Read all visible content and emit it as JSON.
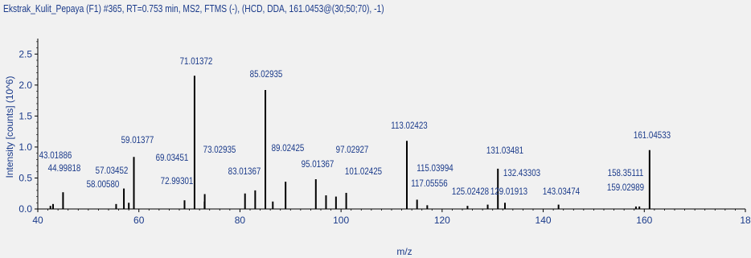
{
  "title": "Ekstrak_Kulit_Pepaya (F1) #365, RT=0.753 min, MS2, FTMS (-), (HCD, DDA, 161.0453@(30;50;70), -1)",
  "chart_data": {
    "type": "bar",
    "title": "Ekstrak_Kulit_Pepaya (F1) #365, RT=0.753 min, MS2, FTMS (-), (HCD, DDA, 161.0453@(30;50;70), -1)",
    "xlabel": "m/z",
    "ylabel": "Intensity [counts] (10^6)",
    "xlim": [
      40,
      180
    ],
    "ylim": [
      0,
      2.75
    ],
    "xticks": [
      "40",
      "60",
      "80",
      "100",
      "120",
      "140",
      "160",
      "18"
    ],
    "yticks": [
      "0.0",
      "0.5",
      "1.0",
      "1.5",
      "2.0",
      "2.5"
    ],
    "grid": false,
    "peaks": [
      {
        "mz": 42.5,
        "value": 0.05
      },
      {
        "mz": 43.01886,
        "value": 0.08
      },
      {
        "mz": 44.99818,
        "value": 0.27
      },
      {
        "mz": 55.5,
        "value": 0.08
      },
      {
        "mz": 57.03452,
        "value": 0.33
      },
      {
        "mz": 58.0058,
        "value": 0.1
      },
      {
        "mz": 59.01377,
        "value": 0.84
      },
      {
        "mz": 69.03451,
        "value": 0.14
      },
      {
        "mz": 71.01372,
        "value": 2.15
      },
      {
        "mz": 72.99301,
        "value": 0.12
      },
      {
        "mz": 73.02935,
        "value": 0.24
      },
      {
        "mz": 81.0,
        "value": 0.25
      },
      {
        "mz": 83.01367,
        "value": 0.3
      },
      {
        "mz": 85.02935,
        "value": 1.92
      },
      {
        "mz": 86.5,
        "value": 0.12
      },
      {
        "mz": 89.02425,
        "value": 0.44
      },
      {
        "mz": 95.01367,
        "value": 0.48
      },
      {
        "mz": 97.02927,
        "value": 0.22
      },
      {
        "mz": 99.0,
        "value": 0.2
      },
      {
        "mz": 101.02425,
        "value": 0.26
      },
      {
        "mz": 113.02423,
        "value": 1.1
      },
      {
        "mz": 115.03994,
        "value": 0.15
      },
      {
        "mz": 117.05556,
        "value": 0.06
      },
      {
        "mz": 125.02428,
        "value": 0.05
      },
      {
        "mz": 129.01913,
        "value": 0.07
      },
      {
        "mz": 131.03481,
        "value": 0.65
      },
      {
        "mz": 132.43303,
        "value": 0.1
      },
      {
        "mz": 143.03474,
        "value": 0.07
      },
      {
        "mz": 158.35111,
        "value": 0.04
      },
      {
        "mz": 159.02989,
        "value": 0.04
      },
      {
        "mz": 161.04533,
        "value": 0.95
      }
    ],
    "labels": [
      {
        "mz": 43.01886,
        "text": "43.01886"
      },
      {
        "mz": 44.99818,
        "text": "44.99818"
      },
      {
        "mz": 57.03452,
        "text": "57.03452"
      },
      {
        "mz": 58.0058,
        "text": "58.00580"
      },
      {
        "mz": 59.01377,
        "text": "59.01377"
      },
      {
        "mz": 69.03451,
        "text": "69.03451"
      },
      {
        "mz": 71.01372,
        "text": "71.01372"
      },
      {
        "mz": 72.99301,
        "text": "72.99301"
      },
      {
        "mz": 73.02935,
        "text": "73.02935"
      },
      {
        "mz": 83.01367,
        "text": "83.01367"
      },
      {
        "mz": 85.02935,
        "text": "85.02935"
      },
      {
        "mz": 89.02425,
        "text": "89.02425"
      },
      {
        "mz": 95.01367,
        "text": "95.01367"
      },
      {
        "mz": 97.02927,
        "text": "97.02927"
      },
      {
        "mz": 101.02425,
        "text": "101.02425"
      },
      {
        "mz": 113.02423,
        "text": "113.02423"
      },
      {
        "mz": 115.03994,
        "text": "115.03994"
      },
      {
        "mz": 117.05556,
        "text": "117.05556"
      },
      {
        "mz": 125.02428,
        "text": "125.02428"
      },
      {
        "mz": 129.01913,
        "text": "129.01913"
      },
      {
        "mz": 131.03481,
        "text": "131.03481"
      },
      {
        "mz": 132.43303,
        "text": "132.43303"
      },
      {
        "mz": 143.03474,
        "text": "143.03474"
      },
      {
        "mz": 158.35111,
        "text": "158.35111"
      },
      {
        "mz": 159.02989,
        "text": "159.02989"
      },
      {
        "mz": 161.04533,
        "text": "161.04533"
      }
    ]
  }
}
